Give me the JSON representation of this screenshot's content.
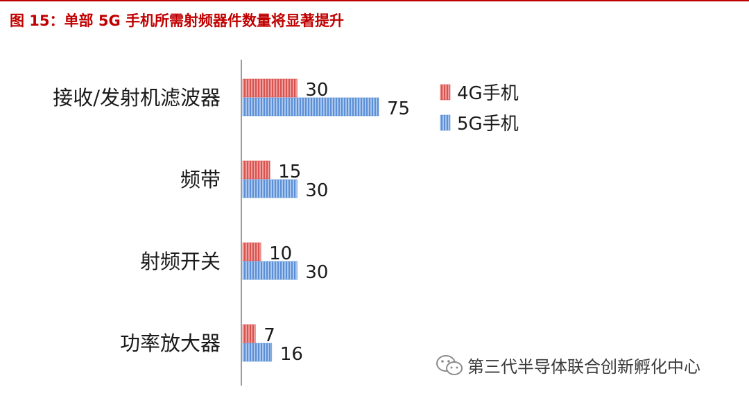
{
  "header": {
    "figure_no": "图 15：",
    "title": "单部 5G 手机所需射频器件数量将显著提升"
  },
  "colors": {
    "accent": "#c00000",
    "series_4g": "#d9534f",
    "series_5g": "#5b8fd6"
  },
  "chart_data": {
    "type": "bar",
    "orientation": "horizontal",
    "categories": [
      "接收/发射机滤波器",
      "频带",
      "射频开关",
      "功率放大器"
    ],
    "series": [
      {
        "name": "4G手机",
        "values": [
          30,
          15,
          10,
          7
        ]
      },
      {
        "name": "5G手机",
        "values": [
          75,
          30,
          30,
          16
        ]
      }
    ],
    "xlim": [
      0,
      75
    ],
    "grid": false,
    "data_labels": true,
    "legend_position": "right"
  },
  "watermark": {
    "text": "第三代半导体联合创新孵化中心",
    "icon": "wechat-icon"
  }
}
